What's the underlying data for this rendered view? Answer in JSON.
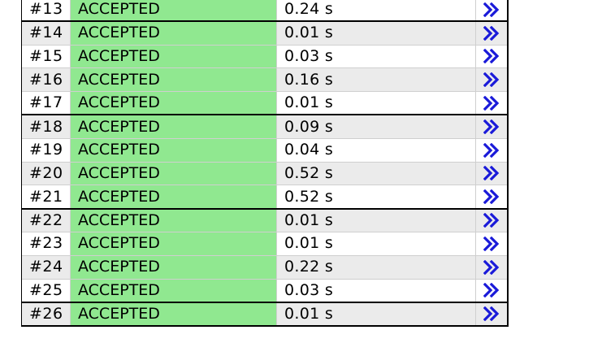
{
  "accent": {
    "verdict_bg": "#90e890",
    "link_color": "#1a1ad9",
    "row_shade": "#ebebeb"
  },
  "link_icon": "double-chevron-right-icon",
  "rows": [
    {
      "id": "#13",
      "verdict": "ACCEPTED",
      "time": "0.24 s",
      "shaded": false,
      "heavy": false
    },
    {
      "id": "#14",
      "verdict": "ACCEPTED",
      "time": "0.01 s",
      "shaded": true,
      "heavy": true
    },
    {
      "id": "#15",
      "verdict": "ACCEPTED",
      "time": "0.03 s",
      "shaded": false,
      "heavy": false
    },
    {
      "id": "#16",
      "verdict": "ACCEPTED",
      "time": "0.16 s",
      "shaded": true,
      "heavy": false
    },
    {
      "id": "#17",
      "verdict": "ACCEPTED",
      "time": "0.01 s",
      "shaded": false,
      "heavy": false
    },
    {
      "id": "#18",
      "verdict": "ACCEPTED",
      "time": "0.09 s",
      "shaded": true,
      "heavy": true
    },
    {
      "id": "#19",
      "verdict": "ACCEPTED",
      "time": "0.04 s",
      "shaded": false,
      "heavy": false
    },
    {
      "id": "#20",
      "verdict": "ACCEPTED",
      "time": "0.52 s",
      "shaded": true,
      "heavy": false
    },
    {
      "id": "#21",
      "verdict": "ACCEPTED",
      "time": "0.52 s",
      "shaded": false,
      "heavy": false
    },
    {
      "id": "#22",
      "verdict": "ACCEPTED",
      "time": "0.01 s",
      "shaded": true,
      "heavy": true
    },
    {
      "id": "#23",
      "verdict": "ACCEPTED",
      "time": "0.01 s",
      "shaded": false,
      "heavy": false
    },
    {
      "id": "#24",
      "verdict": "ACCEPTED",
      "time": "0.22 s",
      "shaded": true,
      "heavy": false
    },
    {
      "id": "#25",
      "verdict": "ACCEPTED",
      "time": "0.03 s",
      "shaded": false,
      "heavy": false
    },
    {
      "id": "#26",
      "verdict": "ACCEPTED",
      "time": "0.01 s",
      "shaded": true,
      "heavy": true
    }
  ]
}
